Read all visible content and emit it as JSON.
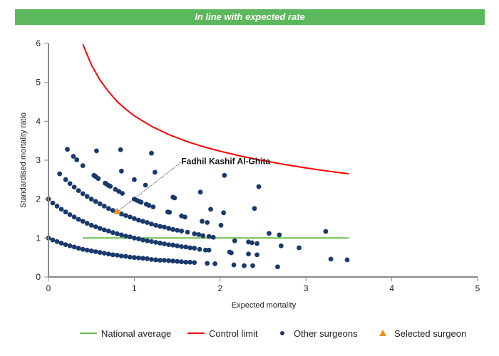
{
  "banner": {
    "text": "In line with expected rate",
    "color": "#5cb85c"
  },
  "chart_data": {
    "type": "scatter",
    "xlabel": "Expected mortality",
    "ylabel": "Standardised mortality ratio",
    "xlim": [
      0,
      5
    ],
    "ylim": [
      0,
      6
    ],
    "xticks": [
      "0",
      "1",
      "2",
      "3",
      "4",
      "5"
    ],
    "yticks": [
      "0",
      "1",
      "2",
      "3",
      "4",
      "5",
      "6"
    ],
    "grid": false,
    "legend_position": "bottom",
    "legend": [
      "National average",
      "Control limit",
      "Other surgeons",
      "Selected surgeon"
    ],
    "colors": {
      "national_average": "#6abf4b",
      "control_limit": "#ff0000",
      "other_surgeons": "#1a3a6e",
      "selected_surgeon": "#f28c1c"
    },
    "national_average": {
      "name": "National average",
      "points": [
        [
          0.4,
          1
        ],
        [
          3.5,
          1
        ]
      ]
    },
    "control_limit": {
      "name": "Control limit",
      "points": [
        [
          0.4,
          5.98
        ],
        [
          0.5,
          5.45
        ],
        [
          0.6,
          5.06
        ],
        [
          0.7,
          4.76
        ],
        [
          0.8,
          4.51
        ],
        [
          0.9,
          4.31
        ],
        [
          1.0,
          4.14
        ],
        [
          1.2,
          3.87
        ],
        [
          1.4,
          3.66
        ],
        [
          1.6,
          3.49
        ],
        [
          1.8,
          3.35
        ],
        [
          2.0,
          3.23
        ],
        [
          2.25,
          3.1
        ],
        [
          2.5,
          2.99
        ],
        [
          2.75,
          2.89
        ],
        [
          3.0,
          2.8
        ],
        [
          3.25,
          2.72
        ],
        [
          3.5,
          2.65
        ]
      ]
    },
    "selected_surgeon": {
      "name": "Selected surgeon",
      "label": "Fadhil Kashif Al-Ghita",
      "point": [
        0.8,
        1.67
      ]
    },
    "other_surgeons": {
      "name": "Other surgeons",
      "points": [
        [
          0,
          1.0
        ],
        [
          0.05,
          0.95
        ],
        [
          0.1,
          0.91
        ],
        [
          0.15,
          0.87
        ],
        [
          0.2,
          0.83
        ],
        [
          0.25,
          0.8
        ],
        [
          0.3,
          0.77
        ],
        [
          0.35,
          0.74
        ],
        [
          0.4,
          0.71
        ],
        [
          0.45,
          0.69
        ],
        [
          0.5,
          0.67
        ],
        [
          0.55,
          0.65
        ],
        [
          0.6,
          0.63
        ],
        [
          0.65,
          0.61
        ],
        [
          0.7,
          0.59
        ],
        [
          0.75,
          0.57
        ],
        [
          0.8,
          0.56
        ],
        [
          0.85,
          0.54
        ],
        [
          0.9,
          0.53
        ],
        [
          0.95,
          0.51
        ],
        [
          1.0,
          0.5
        ],
        [
          1.05,
          0.49
        ],
        [
          1.1,
          0.48
        ],
        [
          1.15,
          0.47
        ],
        [
          1.2,
          0.45
        ],
        [
          1.25,
          0.44
        ],
        [
          1.3,
          0.43
        ],
        [
          1.35,
          0.43
        ],
        [
          1.4,
          0.42
        ],
        [
          1.45,
          0.41
        ],
        [
          1.5,
          0.4
        ],
        [
          1.55,
          0.39
        ],
        [
          1.6,
          0.38
        ],
        [
          1.65,
          0.38
        ],
        [
          1.7,
          0.37
        ],
        [
          1.85,
          0.35
        ],
        [
          1.94,
          0.34
        ],
        [
          0,
          2.0
        ],
        [
          0.05,
          1.9
        ],
        [
          0.1,
          1.82
        ],
        [
          0.15,
          1.74
        ],
        [
          0.2,
          1.67
        ],
        [
          0.25,
          1.6
        ],
        [
          0.3,
          1.54
        ],
        [
          0.35,
          1.48
        ],
        [
          0.4,
          1.43
        ],
        [
          0.45,
          1.38
        ],
        [
          0.5,
          1.33
        ],
        [
          0.55,
          1.29
        ],
        [
          0.6,
          1.25
        ],
        [
          0.65,
          1.21
        ],
        [
          0.7,
          1.18
        ],
        [
          0.75,
          1.14
        ],
        [
          0.8,
          1.11
        ],
        [
          0.85,
          1.08
        ],
        [
          0.9,
          1.05
        ],
        [
          0.95,
          1.03
        ],
        [
          1.0,
          1.0
        ],
        [
          1.05,
          0.98
        ],
        [
          1.1,
          0.95
        ],
        [
          1.15,
          0.93
        ],
        [
          1.2,
          0.91
        ],
        [
          1.25,
          0.89
        ],
        [
          1.3,
          0.87
        ],
        [
          1.35,
          0.85
        ],
        [
          1.4,
          0.83
        ],
        [
          1.45,
          0.82
        ],
        [
          1.5,
          0.8
        ],
        [
          1.55,
          0.78
        ],
        [
          1.6,
          0.77
        ],
        [
          1.65,
          0.75
        ],
        [
          1.7,
          0.74
        ],
        [
          0.2,
          2.5
        ],
        [
          0.25,
          2.4
        ],
        [
          0.3,
          2.31
        ],
        [
          0.35,
          2.22
        ],
        [
          0.4,
          2.14
        ],
        [
          0.45,
          2.07
        ],
        [
          0.5,
          2.0
        ],
        [
          0.55,
          1.94
        ],
        [
          0.6,
          1.88
        ],
        [
          0.65,
          1.82
        ],
        [
          0.7,
          1.76
        ],
        [
          0.75,
          1.71
        ],
        [
          0.85,
          1.62
        ],
        [
          0.9,
          1.58
        ],
        [
          0.95,
          1.54
        ],
        [
          1.0,
          1.5
        ],
        [
          1.05,
          1.46
        ],
        [
          1.1,
          1.43
        ],
        [
          1.15,
          1.4
        ],
        [
          1.2,
          1.36
        ],
        [
          1.25,
          1.33
        ],
        [
          1.3,
          1.3
        ],
        [
          1.35,
          1.28
        ],
        [
          1.4,
          1.25
        ],
        [
          1.45,
          1.22
        ],
        [
          1.5,
          1.2
        ],
        [
          1.55,
          1.18
        ],
        [
          1.62,
          1.15
        ],
        [
          1.7,
          1.11
        ],
        [
          1.75,
          1.09
        ],
        [
          0.22,
          3.28
        ],
        [
          0.29,
          3.1
        ],
        [
          0.33,
          3.01
        ],
        [
          0.4,
          2.86
        ],
        [
          0.53,
          2.61
        ],
        [
          0.55,
          2.58
        ],
        [
          0.58,
          2.53
        ],
        [
          0.66,
          2.41
        ],
        [
          0.68,
          2.38
        ],
        [
          0.7,
          2.35
        ],
        [
          0.72,
          2.33
        ],
        [
          0.78,
          2.25
        ],
        [
          0.82,
          2.2
        ],
        [
          0.86,
          2.15
        ],
        [
          1.0,
          2.0
        ],
        [
          1.03,
          1.97
        ],
        [
          1.06,
          1.94
        ],
        [
          1.08,
          1.92
        ],
        [
          1.14,
          1.87
        ],
        [
          1.17,
          1.84
        ],
        [
          1.22,
          1.8
        ],
        [
          1.39,
          1.67
        ],
        [
          1.41,
          1.66
        ],
        [
          1.55,
          1.57
        ],
        [
          1.59,
          1.54
        ],
        [
          1.79,
          1.43
        ],
        [
          1.85,
          1.4
        ],
        [
          2.01,
          1.33
        ],
        [
          0.13,
          2.65
        ],
        [
          0.56,
          3.24
        ],
        [
          0.84,
          3.27
        ],
        [
          1.2,
          3.18
        ],
        [
          0.85,
          2.72
        ],
        [
          1.24,
          2.69
        ],
        [
          1.0,
          2.5
        ],
        [
          1.13,
          2.36
        ],
        [
          1.45,
          2.05
        ],
        [
          1.47,
          2.03
        ],
        [
          1.77,
          2.18
        ],
        [
          2.05,
          2.61
        ],
        [
          2.45,
          2.32
        ],
        [
          1.89,
          1.74
        ],
        [
          2.04,
          1.65
        ],
        [
          2.4,
          1.76
        ],
        [
          1.8,
          1.06
        ],
        [
          1.87,
          1.04
        ],
        [
          1.92,
          1.02
        ],
        [
          2.57,
          1.12
        ],
        [
          2.69,
          1.08
        ],
        [
          3.23,
          1.17
        ],
        [
          2.17,
          0.93
        ],
        [
          2.33,
          0.9
        ],
        [
          2.37,
          0.88
        ],
        [
          2.43,
          0.86
        ],
        [
          1.76,
          0.71
        ],
        [
          1.83,
          0.69
        ],
        [
          1.87,
          0.69
        ],
        [
          2.11,
          0.64
        ],
        [
          2.13,
          0.62
        ],
        [
          2.71,
          0.8
        ],
        [
          2.92,
          0.75
        ],
        [
          2.33,
          0.59
        ],
        [
          2.43,
          0.57
        ],
        [
          2.16,
          0.31
        ],
        [
          2.28,
          0.29
        ],
        [
          2.38,
          0.29
        ],
        [
          2.67,
          0.26
        ],
        [
          3.29,
          0.46
        ],
        [
          3.48,
          0.44
        ]
      ]
    }
  }
}
